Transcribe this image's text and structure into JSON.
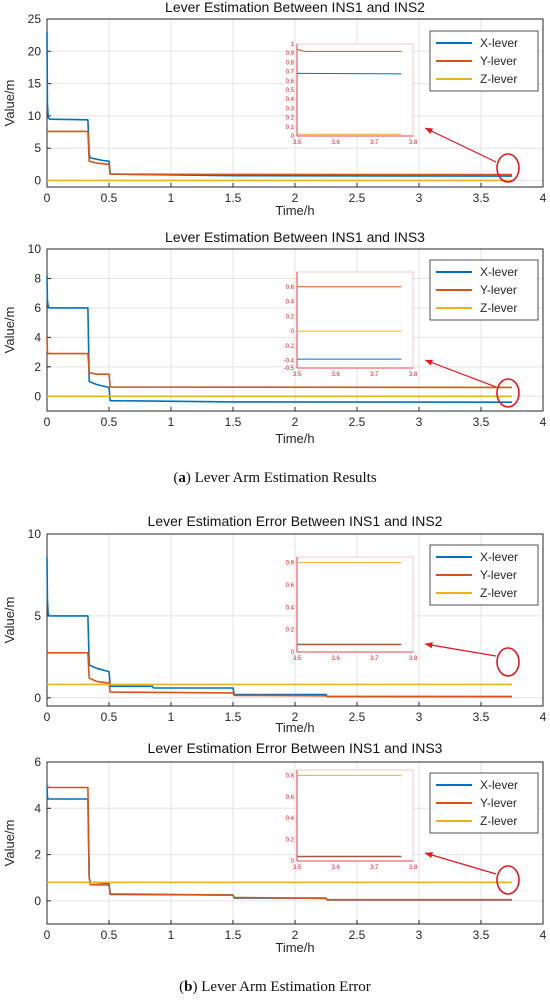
{
  "colors": {
    "x_lever": "#0072BD",
    "y_lever": "#D95319",
    "z_lever": "#EDB120",
    "annotation": "#e8141e"
  },
  "captions": {
    "a_letter": "a",
    "a_text": "Lever Arm Estimation Results",
    "b_letter": "b",
    "b_text": "Lever Arm Estimation Error"
  },
  "chart_data": [
    {
      "type": "line",
      "title": "Lever Estimation Between INS1 and INS2",
      "xlabel": "Time/h",
      "ylabel": "Value/m",
      "xlim": [
        0,
        4
      ],
      "ylim": [
        -1,
        25
      ],
      "xticks": [
        "0",
        "0.5",
        "1",
        "1.5",
        "2",
        "2.5",
        "3",
        "3.5",
        "4"
      ],
      "yticks": [
        "0",
        "5",
        "10",
        "15",
        "20",
        "25"
      ],
      "legend": "top-right",
      "series": [
        {
          "name": "X-lever",
          "x": [
            0,
            0.003,
            0.01,
            0.02,
            0.33,
            0.34,
            0.35,
            0.4,
            0.45,
            0.5,
            0.51,
            1.5,
            3.75
          ],
          "y": [
            23,
            12,
            9.8,
            9.5,
            9.4,
            4,
            3.5,
            3.3,
            3.1,
            3.0,
            1.0,
            0.75,
            0.68
          ]
        },
        {
          "name": "Y-lever",
          "x": [
            0,
            0.01,
            0.33,
            0.34,
            0.4,
            0.45,
            0.5,
            0.51,
            1.5,
            3.75
          ],
          "y": [
            7.6,
            7.6,
            7.6,
            3,
            2.7,
            2.6,
            2.5,
            1.0,
            0.95,
            0.92
          ]
        },
        {
          "name": "Z-lever",
          "x": [
            0,
            3.75
          ],
          "y": [
            0.02,
            0.02
          ]
        }
      ],
      "inset": {
        "xlim": [
          3.5,
          3.8
        ],
        "ylim": [
          0,
          1
        ],
        "xticks": [
          "3.5",
          "3.6",
          "3.7",
          "3.8"
        ],
        "yticks": [
          "0",
          "0.1",
          "0.2",
          "0.3",
          "0.4",
          "0.5",
          "0.6",
          "0.7",
          "0.8",
          "0.9",
          "1"
        ],
        "series": [
          {
            "name": "X-lever",
            "x": [
              3.5,
              3.77
            ],
            "y": [
              0.68,
              0.675
            ]
          },
          {
            "name": "Y-lever",
            "x": [
              3.5,
              3.51,
              3.52,
              3.77
            ],
            "y": [
              0.94,
              0.93,
              0.92,
              0.92
            ]
          },
          {
            "name": "Z-lever",
            "x": [
              3.5,
              3.77
            ],
            "y": [
              0.02,
              0.02
            ]
          }
        ]
      }
    },
    {
      "type": "line",
      "title": "Lever Estimation Between INS1 and INS3",
      "xlabel": "Time/h",
      "ylabel": "Value/m",
      "xlim": [
        0,
        4
      ],
      "ylim": [
        -1,
        10
      ],
      "xticks": [
        "0",
        "0.5",
        "1",
        "1.5",
        "2",
        "2.5",
        "3",
        "3.5",
        "4"
      ],
      "yticks": [
        "0",
        "2",
        "4",
        "6",
        "8",
        "10"
      ],
      "legend": "top-right",
      "series": [
        {
          "name": "X-lever",
          "x": [
            0,
            0.003,
            0.01,
            0.02,
            0.33,
            0.34,
            0.4,
            0.45,
            0.5,
            0.51,
            0.85,
            1.5,
            3.75
          ],
          "y": [
            8.2,
            6.5,
            6.1,
            6.0,
            6.0,
            1.0,
            0.8,
            0.7,
            0.6,
            -0.3,
            -0.33,
            -0.38,
            -0.4
          ]
        },
        {
          "name": "Y-lever",
          "x": [
            0,
            0.003,
            0.01,
            0.33,
            0.34,
            0.4,
            0.5,
            0.51,
            3.75
          ],
          "y": [
            4.0,
            3.0,
            2.9,
            2.9,
            1.6,
            1.5,
            1.5,
            0.62,
            0.6
          ]
        },
        {
          "name": "Z-lever",
          "x": [
            0,
            3.75
          ],
          "y": [
            0.0,
            0.0
          ]
        }
      ],
      "inset": {
        "xlim": [
          3.5,
          3.8
        ],
        "ylim": [
          -0.5,
          0.8
        ],
        "xticks": [
          "3.5",
          "3.6",
          "3.7",
          "3.8"
        ],
        "yticks": [
          "-0.5",
          "-0.4",
          "-0.2",
          "0",
          "0.2",
          "0.4",
          "0.6"
        ],
        "series": [
          {
            "name": "X-lever",
            "x": [
              3.5,
              3.77
            ],
            "y": [
              -0.38,
              -0.38
            ]
          },
          {
            "name": "Y-lever",
            "x": [
              3.5,
              3.77
            ],
            "y": [
              0.6,
              0.6
            ]
          },
          {
            "name": "Z-lever",
            "x": [
              3.5,
              3.77
            ],
            "y": [
              0.0,
              0.0
            ]
          }
        ]
      }
    },
    {
      "type": "line",
      "title": "Lever Estimation Error Between INS1 and INS2",
      "xlabel": "Time/h",
      "ylabel": "Value/m",
      "xlim": [
        0,
        4
      ],
      "ylim": [
        -0.5,
        10
      ],
      "xticks": [
        "0",
        "0.5",
        "1",
        "1.5",
        "2",
        "2.5",
        "3",
        "3.5",
        "4"
      ],
      "yticks": [
        "0",
        "5",
        "10"
      ],
      "legend": "top-right",
      "series": [
        {
          "name": "X-lever",
          "x": [
            0,
            0.003,
            0.01,
            0.02,
            0.33,
            0.34,
            0.4,
            0.45,
            0.5,
            0.51,
            0.85,
            0.86,
            1.5,
            1.51,
            2.25,
            2.26,
            3.75
          ],
          "y": [
            8.6,
            6,
            5.1,
            5.0,
            5.0,
            2.0,
            1.8,
            1.7,
            1.6,
            0.7,
            0.7,
            0.6,
            0.6,
            0.2,
            0.2,
            0.08,
            0.08
          ]
        },
        {
          "name": "Y-lever",
          "x": [
            0,
            0.01,
            0.33,
            0.34,
            0.4,
            0.5,
            0.51,
            1.5,
            1.51,
            2.25,
            2.26,
            3.75
          ],
          "y": [
            2.8,
            2.75,
            2.75,
            1.2,
            1.0,
            0.9,
            0.35,
            0.3,
            0.15,
            0.12,
            0.08,
            0.07
          ]
        },
        {
          "name": "Z-lever",
          "x": [
            0,
            3.75
          ],
          "y": [
            0.82,
            0.82
          ]
        }
      ],
      "inset": {
        "xlim": [
          3.5,
          3.8
        ],
        "ylim": [
          0,
          0.85
        ],
        "xticks": [
          "3.5",
          "3.6",
          "3.7",
          "3.8"
        ],
        "yticks": [
          "0",
          "0.2",
          "0.4",
          "0.6",
          "0.8"
        ],
        "series": [
          {
            "name": "X-lever",
            "x": [
              3.5,
              3.77
            ],
            "y": [
              0.07,
              0.07
            ]
          },
          {
            "name": "Y-lever",
            "x": [
              3.5,
              3.77
            ],
            "y": [
              0.065,
              0.065
            ]
          },
          {
            "name": "Z-lever",
            "x": [
              3.5,
              3.77
            ],
            "y": [
              0.8,
              0.8
            ]
          }
        ]
      }
    },
    {
      "type": "line",
      "title": "Lever Estimation Error Between INS1 and INS3",
      "xlabel": "Time/h",
      "ylabel": "Value/m",
      "xlim": [
        0,
        4
      ],
      "ylim": [
        -1,
        6
      ],
      "xticks": [
        "0",
        "0.5",
        "1",
        "1.5",
        "2",
        "2.5",
        "3",
        "3.5",
        "4"
      ],
      "yticks": [
        "0",
        "2",
        "4",
        "6"
      ],
      "legend": "top-right",
      "series": [
        {
          "name": "X-lever",
          "x": [
            0,
            0.003,
            0.01,
            0.33,
            0.34,
            0.35,
            0.5,
            0.51,
            1.5,
            1.51,
            2.25,
            2.26,
            3.75
          ],
          "y": [
            5.0,
            4.5,
            4.4,
            4.4,
            1.0,
            0.8,
            0.75,
            0.28,
            0.25,
            0.12,
            0.12,
            0.04,
            0.04
          ]
        },
        {
          "name": "Y-lever",
          "x": [
            0,
            0.01,
            0.33,
            0.34,
            0.35,
            0.5,
            0.51,
            1.5,
            1.51,
            2.25,
            2.26,
            3.75
          ],
          "y": [
            5.0,
            4.9,
            4.9,
            1.0,
            0.7,
            0.68,
            0.3,
            0.25,
            0.15,
            0.1,
            0.05,
            0.05
          ]
        },
        {
          "name": "Z-lever",
          "x": [
            0,
            3.75
          ],
          "y": [
            0.8,
            0.8
          ]
        }
      ],
      "inset": {
        "xlim": [
          3.5,
          3.8
        ],
        "ylim": [
          0,
          0.85
        ],
        "xticks": [
          "3.5",
          "3.6",
          "3.7",
          "3.8"
        ],
        "yticks": [
          "0",
          "0.2",
          "0.4",
          "0.6",
          "0.8"
        ],
        "series": [
          {
            "name": "X-lever",
            "x": [
              3.5,
              3.77
            ],
            "y": [
              0.04,
              0.04
            ]
          },
          {
            "name": "Y-lever",
            "x": [
              3.5,
              3.77
            ],
            "y": [
              0.045,
              0.045
            ]
          },
          {
            "name": "Z-lever",
            "x": [
              3.5,
              3.77
            ],
            "y": [
              0.8,
              0.8
            ]
          }
        ]
      }
    }
  ]
}
